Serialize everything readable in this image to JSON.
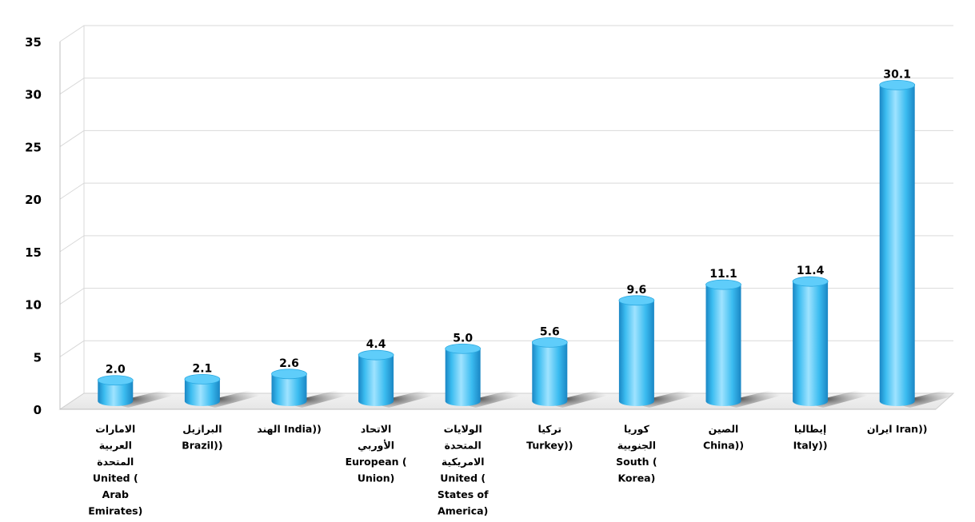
{
  "chart_data": {
    "type": "bar",
    "style": "3d-cylinder",
    "categories": [
      [
        "الامارات",
        "العربية",
        "المتحدة",
        "United (",
        "Arab",
        "Emirates)"
      ],
      [
        "البرازيل",
        "Brazil))"
      ],
      [
        "الهند  India))"
      ],
      [
        "الاتحاد",
        "الأوربي",
        "European (",
        "Union)"
      ],
      [
        "الولايات",
        "المتحدة",
        "الامريكية",
        "United (",
        "States of",
        "America)"
      ],
      [
        "تركيا",
        "Turkey))"
      ],
      [
        "كوريا",
        "الجنوبية",
        "South (",
        "Korea)"
      ],
      [
        "الصين",
        "China))"
      ],
      [
        "إيطاليا",
        "Italy))"
      ],
      [
        "ايران  Iran))"
      ]
    ],
    "values": [
      2.0,
      2.1,
      2.6,
      4.4,
      5.0,
      5.6,
      9.6,
      11.1,
      11.4,
      30.1
    ],
    "value_labels": [
      "2.0",
      "2.1",
      "2.6",
      "4.4",
      "5.0",
      "5.6",
      "9.6",
      "11.1",
      "11.4",
      "30.1"
    ],
    "yticks": [
      "0",
      "5",
      "10",
      "15",
      "20",
      "25",
      "30",
      "35"
    ],
    "ylim": [
      0,
      35
    ],
    "grid": true,
    "legend": "none",
    "colors": {
      "bar_light": "#9fe3ff",
      "bar_mid": "#3bbcf0",
      "bar_dark": "#1a86c4",
      "bar_top": "#5fcdfa",
      "grid": "#d9d9d9",
      "axis": "#bfbfbf",
      "shadow": "#555555"
    }
  }
}
